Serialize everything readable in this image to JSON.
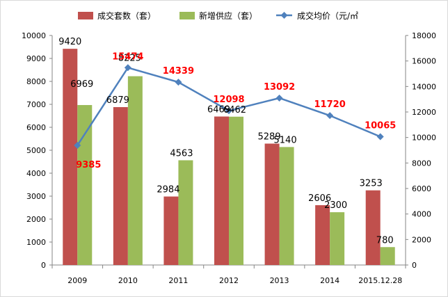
{
  "chart_data": {
    "type": "bar",
    "categories": [
      "2009",
      "2010",
      "2011",
      "2012",
      "2013",
      "2014",
      "2015.12.28"
    ],
    "series": [
      {
        "name": "成交套数（套）",
        "type": "bar",
        "axis": "left",
        "color": "#c0504d",
        "values": [
          9420,
          6879,
          2984,
          6469,
          5289,
          2606,
          3253
        ]
      },
      {
        "name": "新增供应（套）",
        "type": "bar",
        "axis": "left",
        "color": "#9bbb59",
        "values": [
          6969,
          8225,
          4563,
          6462,
          5140,
          2300,
          780
        ]
      },
      {
        "name": "成交均价（元/㎡",
        "type": "line",
        "axis": "right",
        "color": "#4f81bd",
        "values": [
          9385,
          15474,
          14339,
          12098,
          13092,
          11720,
          10065
        ]
      }
    ],
    "y_left": {
      "min": 0,
      "max": 10000,
      "step": 1000
    },
    "y_right": {
      "min": 0,
      "max": 18000,
      "step": 2000
    },
    "grid": false,
    "legend_position": "top"
  }
}
